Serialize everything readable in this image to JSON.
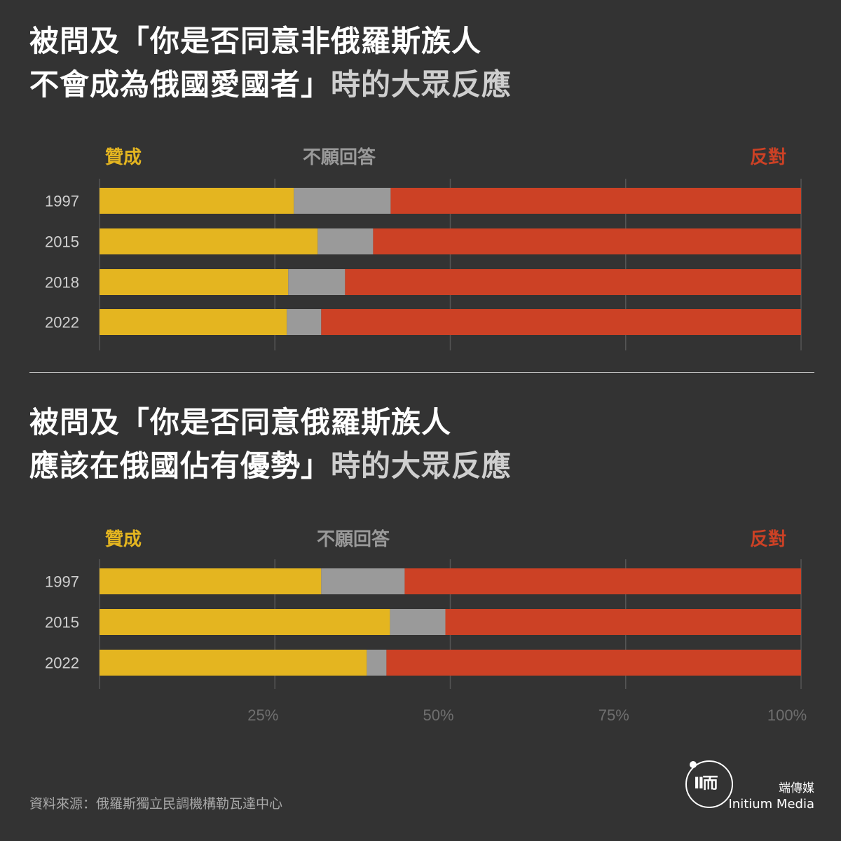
{
  "titles": [
    {
      "line1": "被問及「你是否同意非俄羅斯族人",
      "line2_main": "不會成為俄國愛國者」",
      "line2_tail": "時的大眾反應"
    },
    {
      "line1": "被問及「你是否同意俄羅斯族人",
      "line2_main": "應該在俄國佔有優勢」",
      "line2_tail": "時的大眾反應"
    }
  ],
  "legend": {
    "agree": "贊成",
    "no_answer": "不願回答",
    "disagree": "反對"
  },
  "colors": {
    "agree": "#e4b520",
    "no_answer": "#9a9a9a",
    "disagree": "#cc4125",
    "axis": "#555555",
    "tick_label": "#6f6f6f",
    "year_label": "#cfcfcf"
  },
  "chart_data": [
    {
      "type": "bar",
      "orientation": "horizontal",
      "stacked": true,
      "categories": [
        "1997",
        "2015",
        "2018",
        "2022"
      ],
      "series": [
        {
          "name": "贊成",
          "values": [
            27.7,
            31.1,
            26.9,
            26.7
          ]
        },
        {
          "name": "不願回答",
          "values": [
            13.8,
            7.9,
            8.1,
            4.9
          ]
        },
        {
          "name": "反對",
          "values": [
            58.5,
            61.0,
            65.0,
            68.4
          ]
        }
      ],
      "xlim": [
        0,
        100
      ]
    },
    {
      "type": "bar",
      "orientation": "horizontal",
      "stacked": true,
      "categories": [
        "1997",
        "2015",
        "2022"
      ],
      "series": [
        {
          "name": "贊成",
          "values": [
            31.6,
            41.4,
            38.1
          ]
        },
        {
          "name": "不願回答",
          "values": [
            11.9,
            7.9,
            2.8
          ]
        },
        {
          "name": "反對",
          "values": [
            56.5,
            50.7,
            59.1
          ]
        }
      ],
      "xlim": [
        0,
        100
      ],
      "xticks": [
        "25%",
        "50%",
        "75%",
        "100%"
      ]
    }
  ],
  "source": "資料來源：俄羅斯獨立民調機構勒瓦達中心",
  "brand": {
    "zh": "端傳媒",
    "en": "Initium Media"
  }
}
